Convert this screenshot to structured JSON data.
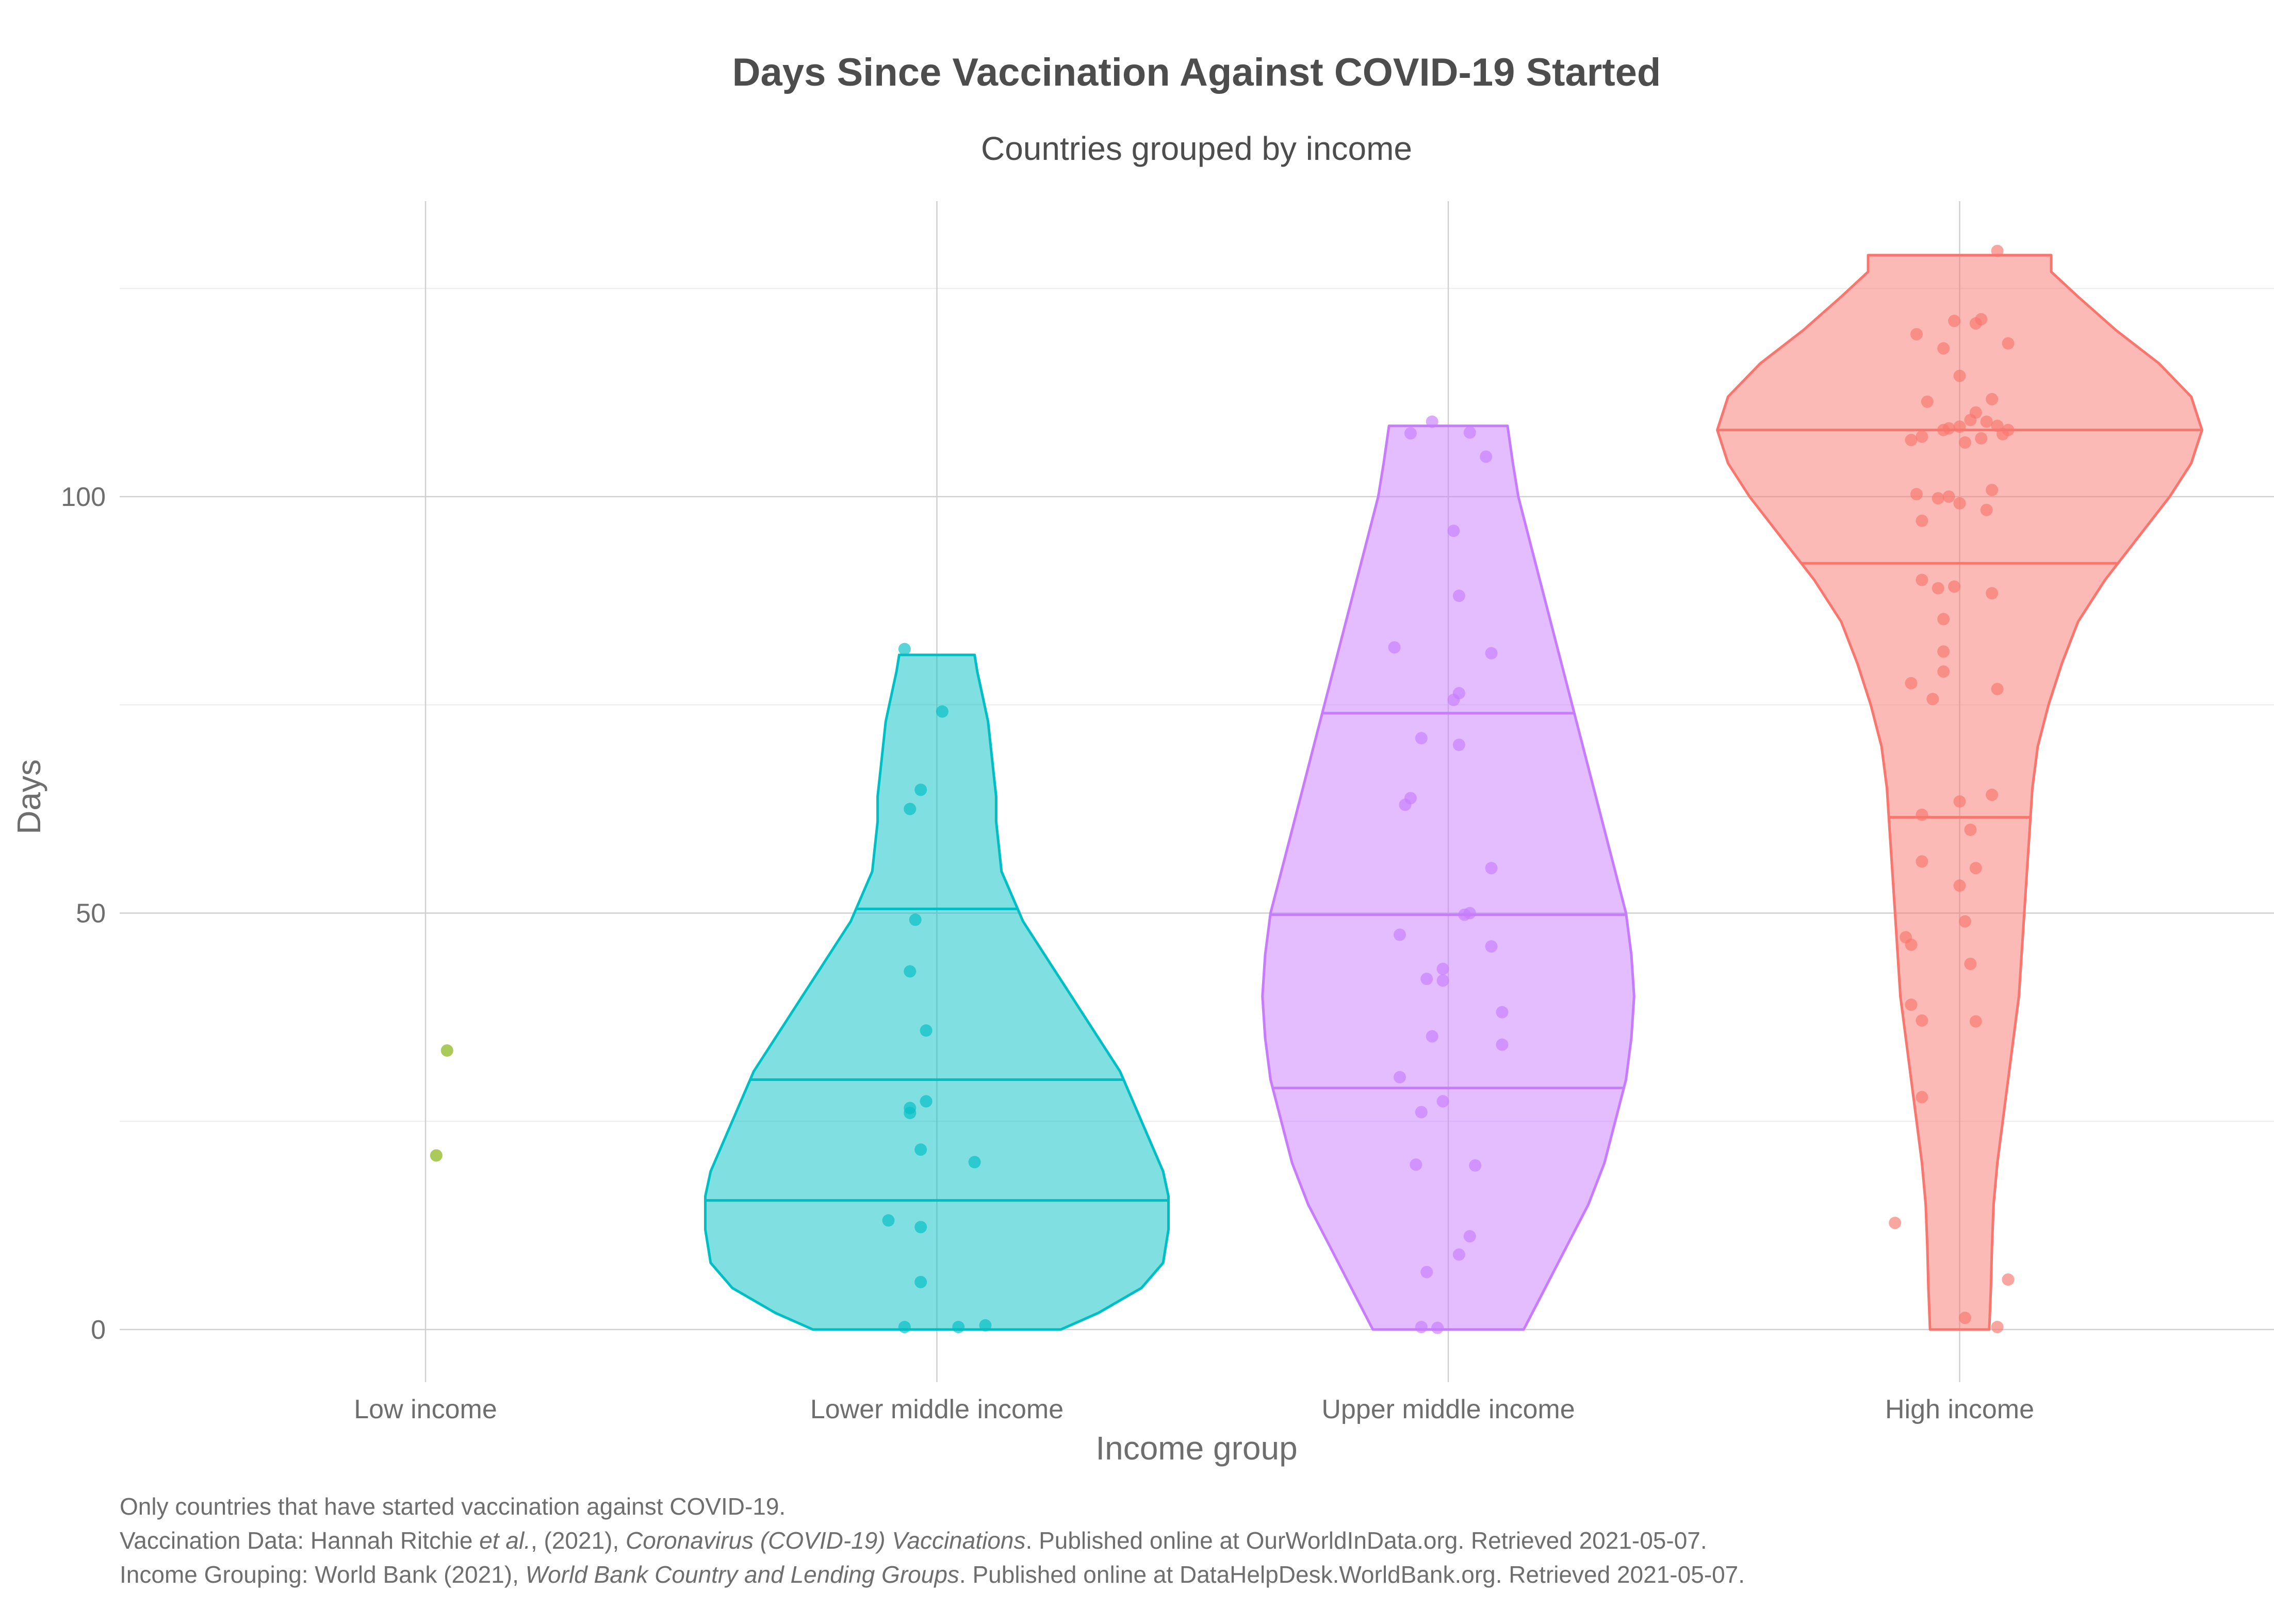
{
  "chart_data": {
    "type": "violin",
    "title": "Days Since Vaccination Against COVID-19 Started",
    "subtitle": "Countries grouped by income",
    "xlabel": "Income group",
    "ylabel": "Days",
    "categories": [
      "Low income",
      "Lower middle income",
      "Upper middle income",
      "High income"
    ],
    "y_ticks": [
      0,
      50,
      100
    ],
    "ylim": [
      -6,
      135
    ],
    "grid": true,
    "series": [
      {
        "category": "Low income",
        "color": "#7cae00",
        "violin": false,
        "points": [
          {
            "dx": 0.04,
            "y": 33.5
          },
          {
            "dx": 0.02,
            "y": 20.9
          }
        ]
      },
      {
        "category": "Lower middle income",
        "color": "#00bfc4",
        "violin": true,
        "ymin": 0,
        "ymax": 81,
        "quartiles": [
          15.5,
          30,
          50.5
        ],
        "density": [
          [
            0,
            0.23
          ],
          [
            2,
            0.3
          ],
          [
            5,
            0.38
          ],
          [
            8,
            0.42
          ],
          [
            12,
            0.43
          ],
          [
            16,
            0.43
          ],
          [
            19,
            0.42
          ],
          [
            22,
            0.4
          ],
          [
            25,
            0.38
          ],
          [
            28,
            0.36
          ],
          [
            31,
            0.34
          ],
          [
            34,
            0.31
          ],
          [
            37,
            0.28
          ],
          [
            40,
            0.25
          ],
          [
            43,
            0.22
          ],
          [
            46,
            0.19
          ],
          [
            49,
            0.16
          ],
          [
            52,
            0.14
          ],
          [
            55,
            0.12
          ],
          [
            58,
            0.115
          ],
          [
            61,
            0.11
          ],
          [
            64,
            0.11
          ],
          [
            67,
            0.105
          ],
          [
            70,
            0.1
          ],
          [
            73,
            0.095
          ],
          [
            76,
            0.085
          ],
          [
            79,
            0.075
          ],
          [
            81,
            0.07
          ]
        ],
        "points": [
          {
            "dx": -0.06,
            "y": 81.7
          },
          {
            "dx": 0.01,
            "y": 74.2
          },
          {
            "dx": -0.03,
            "y": 64.8
          },
          {
            "dx": -0.05,
            "y": 62.5
          },
          {
            "dx": -0.04,
            "y": 49.2
          },
          {
            "dx": -0.05,
            "y": 43.0
          },
          {
            "dx": -0.02,
            "y": 35.9
          },
          {
            "dx": -0.02,
            "y": 27.4
          },
          {
            "dx": -0.05,
            "y": 26.6
          },
          {
            "dx": -0.05,
            "y": 26.0
          },
          {
            "dx": -0.03,
            "y": 21.6
          },
          {
            "dx": 0.07,
            "y": 20.1
          },
          {
            "dx": -0.09,
            "y": 13.1
          },
          {
            "dx": -0.03,
            "y": 12.3
          },
          {
            "dx": -0.03,
            "y": 5.7
          },
          {
            "dx": -0.06,
            "y": 0.3
          },
          {
            "dx": 0.04,
            "y": 0.3
          },
          {
            "dx": 0.09,
            "y": 0.5
          }
        ]
      },
      {
        "category": "Upper middle income",
        "color": "#c77cff",
        "violin": true,
        "ymin": 0,
        "ymax": 108.5,
        "quartiles": [
          29,
          49.8,
          74
        ],
        "density": [
          [
            0,
            0.14
          ],
          [
            5,
            0.18
          ],
          [
            10,
            0.22
          ],
          [
            15,
            0.26
          ],
          [
            20,
            0.29
          ],
          [
            25,
            0.31
          ],
          [
            30,
            0.33
          ],
          [
            35,
            0.34
          ],
          [
            40,
            0.345
          ],
          [
            45,
            0.34
          ],
          [
            50,
            0.33
          ],
          [
            55,
            0.31
          ],
          [
            60,
            0.29
          ],
          [
            65,
            0.27
          ],
          [
            70,
            0.25
          ],
          [
            75,
            0.23
          ],
          [
            80,
            0.21
          ],
          [
            85,
            0.19
          ],
          [
            90,
            0.17
          ],
          [
            95,
            0.15
          ],
          [
            100,
            0.13
          ],
          [
            104,
            0.12
          ],
          [
            108.5,
            0.11
          ]
        ],
        "points": [
          {
            "dx": -0.03,
            "y": 109.0
          },
          {
            "dx": -0.07,
            "y": 107.6
          },
          {
            "dx": 0.04,
            "y": 107.7
          },
          {
            "dx": 0.07,
            "y": 104.8
          },
          {
            "dx": 0.01,
            "y": 95.9
          },
          {
            "dx": 0.02,
            "y": 88.1
          },
          {
            "dx": -0.1,
            "y": 81.9
          },
          {
            "dx": 0.08,
            "y": 81.2
          },
          {
            "dx": 0.02,
            "y": 76.4
          },
          {
            "dx": 0.01,
            "y": 75.6
          },
          {
            "dx": -0.05,
            "y": 71.0
          },
          {
            "dx": 0.02,
            "y": 70.2
          },
          {
            "dx": -0.07,
            "y": 63.8
          },
          {
            "dx": -0.08,
            "y": 63.0
          },
          {
            "dx": 0.08,
            "y": 55.4
          },
          {
            "dx": 0.04,
            "y": 50.0
          },
          {
            "dx": 0.03,
            "y": 49.8
          },
          {
            "dx": -0.09,
            "y": 47.4
          },
          {
            "dx": 0.08,
            "y": 46.0
          },
          {
            "dx": -0.01,
            "y": 43.3
          },
          {
            "dx": -0.04,
            "y": 42.1
          },
          {
            "dx": -0.01,
            "y": 41.9
          },
          {
            "dx": 0.1,
            "y": 38.1
          },
          {
            "dx": -0.03,
            "y": 35.2
          },
          {
            "dx": 0.1,
            "y": 34.2
          },
          {
            "dx": -0.09,
            "y": 30.3
          },
          {
            "dx": -0.01,
            "y": 27.4
          },
          {
            "dx": -0.05,
            "y": 26.1
          },
          {
            "dx": -0.06,
            "y": 19.8
          },
          {
            "dx": 0.05,
            "y": 19.7
          },
          {
            "dx": 0.04,
            "y": 11.2
          },
          {
            "dx": 0.02,
            "y": 9.0
          },
          {
            "dx": -0.04,
            "y": 6.9
          },
          {
            "dx": -0.05,
            "y": 0.3
          },
          {
            "dx": -0.02,
            "y": 0.2
          }
        ]
      },
      {
        "category": "High income",
        "color": "#f8766d",
        "violin": true,
        "ymin": 0,
        "ymax": 129,
        "quartiles": [
          61.5,
          92,
          108
        ],
        "density": [
          [
            0,
            0.055
          ],
          [
            5,
            0.058
          ],
          [
            10,
            0.06
          ],
          [
            15,
            0.063
          ],
          [
            20,
            0.07
          ],
          [
            25,
            0.08
          ],
          [
            30,
            0.09
          ],
          [
            35,
            0.1
          ],
          [
            40,
            0.11
          ],
          [
            45,
            0.115
          ],
          [
            50,
            0.12
          ],
          [
            55,
            0.125
          ],
          [
            60,
            0.13
          ],
          [
            65,
            0.135
          ],
          [
            70,
            0.145
          ],
          [
            75,
            0.165
          ],
          [
            80,
            0.19
          ],
          [
            85,
            0.22
          ],
          [
            90,
            0.27
          ],
          [
            95,
            0.33
          ],
          [
            100,
            0.39
          ],
          [
            104,
            0.43
          ],
          [
            108,
            0.45
          ],
          [
            112,
            0.43
          ],
          [
            116,
            0.37
          ],
          [
            120,
            0.29
          ],
          [
            124,
            0.22
          ],
          [
            127,
            0.17
          ],
          [
            129,
            0.17
          ]
        ],
        "points": [
          {
            "dx": 0.07,
            "y": 129.5
          },
          {
            "dx": -0.01,
            "y": 121.1
          },
          {
            "dx": 0.03,
            "y": 120.8
          },
          {
            "dx": 0.04,
            "y": 121.3
          },
          {
            "dx": -0.08,
            "y": 119.5
          },
          {
            "dx": 0.09,
            "y": 118.4
          },
          {
            "dx": -0.03,
            "y": 117.8
          },
          {
            "dx": 0.0,
            "y": 114.5
          },
          {
            "dx": -0.06,
            "y": 111.4
          },
          {
            "dx": 0.06,
            "y": 111.7
          },
          {
            "dx": 0.03,
            "y": 110.1
          },
          {
            "dx": -0.02,
            "y": 108.2
          },
          {
            "dx": -0.03,
            "y": 108.0
          },
          {
            "dx": 0.0,
            "y": 108.4
          },
          {
            "dx": 0.02,
            "y": 109.2
          },
          {
            "dx": 0.05,
            "y": 109.0
          },
          {
            "dx": 0.07,
            "y": 108.5
          },
          {
            "dx": 0.09,
            "y": 108.0
          },
          {
            "dx": -0.07,
            "y": 107.2
          },
          {
            "dx": -0.09,
            "y": 106.8
          },
          {
            "dx": 0.01,
            "y": 106.5
          },
          {
            "dx": 0.04,
            "y": 107.0
          },
          {
            "dx": 0.08,
            "y": 107.5
          },
          {
            "dx": -0.08,
            "y": 100.3
          },
          {
            "dx": -0.04,
            "y": 99.8
          },
          {
            "dx": -0.02,
            "y": 100.0
          },
          {
            "dx": 0.0,
            "y": 99.2
          },
          {
            "dx": 0.06,
            "y": 100.8
          },
          {
            "dx": 0.05,
            "y": 98.4
          },
          {
            "dx": -0.07,
            "y": 97.1
          },
          {
            "dx": -0.07,
            "y": 90.0
          },
          {
            "dx": -0.01,
            "y": 89.2
          },
          {
            "dx": -0.04,
            "y": 89.0
          },
          {
            "dx": 0.06,
            "y": 88.4
          },
          {
            "dx": -0.03,
            "y": 85.3
          },
          {
            "dx": -0.03,
            "y": 81.4
          },
          {
            "dx": -0.03,
            "y": 79.0
          },
          {
            "dx": -0.09,
            "y": 77.6
          },
          {
            "dx": 0.07,
            "y": 76.9
          },
          {
            "dx": -0.05,
            "y": 75.7
          },
          {
            "dx": 0.0,
            "y": 63.4
          },
          {
            "dx": 0.06,
            "y": 64.2
          },
          {
            "dx": -0.07,
            "y": 61.8
          },
          {
            "dx": 0.02,
            "y": 60.0
          },
          {
            "dx": -0.07,
            "y": 56.2
          },
          {
            "dx": 0.03,
            "y": 55.4
          },
          {
            "dx": 0.0,
            "y": 53.3
          },
          {
            "dx": 0.01,
            "y": 49.0
          },
          {
            "dx": -0.1,
            "y": 47.1
          },
          {
            "dx": -0.09,
            "y": 46.2
          },
          {
            "dx": 0.02,
            "y": 43.9
          },
          {
            "dx": -0.09,
            "y": 39.0
          },
          {
            "dx": -0.07,
            "y": 37.1
          },
          {
            "dx": 0.03,
            "y": 37.0
          },
          {
            "dx": -0.07,
            "y": 27.9
          },
          {
            "dx": -0.12,
            "y": 12.8
          },
          {
            "dx": 0.09,
            "y": 6.0
          },
          {
            "dx": 0.01,
            "y": 1.4
          },
          {
            "dx": 0.07,
            "y": 0.3
          }
        ]
      }
    ]
  },
  "caption": {
    "line1": "Only countries that have started vaccination against COVID-19.",
    "line2_a": "Vaccination Data: Hannah Ritchie ",
    "line2_b": "et al.",
    "line2_c": ", (2021), ",
    "line2_d": "Coronavirus (COVID-19) Vaccinations",
    "line2_e": ". Published online at OurWorldInData.org. Retrieved 2021-05-07.",
    "line3_a": "Income Grouping: World Bank (2021), ",
    "line3_b": "World Bank Country and Lending Groups",
    "line3_c": ". Published online at DataHelpDesk.WorldBank.org. Retrieved 2021-05-07."
  },
  "colors": {
    "text": "#4d4d4d",
    "muted": "#6e6e6e",
    "grid": "#d0d0d0",
    "minor_grid": "#ececec"
  }
}
